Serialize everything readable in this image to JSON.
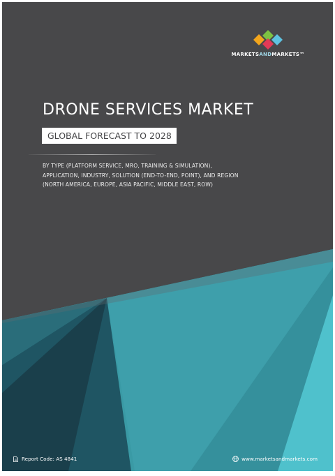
{
  "brand": {
    "logo_text_left": "MARKETS",
    "logo_text_mid": "AND",
    "logo_text_right": "MARKETS",
    "trademark": "™",
    "colors": [
      "#f3a61c",
      "#e23a57",
      "#5ec2e0",
      "#7dc242"
    ]
  },
  "cover": {
    "title": "DRONE SERVICES MARKET",
    "subtitle": "GLOBAL FORECAST TO 2028",
    "description_lines": [
      "BY TYPE (PLATFORM SERVICE, MRO, TRAINING & SIMULATION),",
      "APPLICATION, INDUSTRY, SOLUTION (END-TO-END, POINT), AND REGION",
      "(NORTH AMERICA, EUROPE, ASIA PACIFIC, MIDDLE EAST, ROW)"
    ]
  },
  "footer": {
    "report_code": "Report Code: AS 4841",
    "website": "www.marketsandmarkets.com",
    "doc_icon": "document-icon",
    "globe_icon": "globe-icon"
  },
  "palette": {
    "background": "#48484a",
    "teal_light": "#48b4bf",
    "teal_mid": "#35909c",
    "teal_dark": "#1f5563",
    "teal_darkest": "#1a3f4b"
  }
}
